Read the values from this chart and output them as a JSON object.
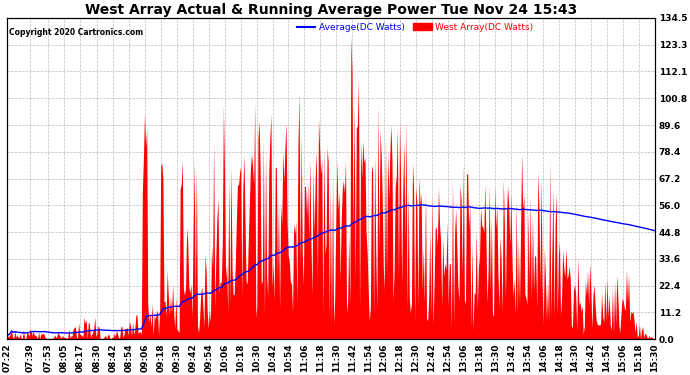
{
  "title": "West Array Actual & Running Average Power Tue Nov 24 15:43",
  "copyright": "Copyright 2020 Cartronics.com",
  "legend_avg": "Average(DC Watts)",
  "legend_west": "West Array(DC Watts)",
  "ylabel_right_ticks": [
    0.0,
    11.2,
    22.4,
    33.6,
    44.8,
    56.0,
    67.2,
    78.4,
    89.6,
    100.8,
    112.1,
    123.3,
    134.5
  ],
  "ymax": 134.5,
  "ymin": 0.0,
  "background_color": "#ffffff",
  "grid_color": "#aaaaaa",
  "bar_color": "#ff0000",
  "avg_line_color": "#0000ff",
  "title_fontsize": 10,
  "tick_fontsize": 6.5,
  "x_tick_labels": [
    "07:22",
    "07:39",
    "07:53",
    "08:05",
    "08:17",
    "08:30",
    "08:42",
    "08:54",
    "09:06",
    "09:18",
    "09:30",
    "09:42",
    "09:54",
    "10:06",
    "10:18",
    "10:30",
    "10:42",
    "10:54",
    "11:06",
    "11:18",
    "11:30",
    "11:42",
    "11:54",
    "12:06",
    "12:18",
    "12:30",
    "12:42",
    "12:54",
    "13:06",
    "13:18",
    "13:30",
    "13:42",
    "13:54",
    "14:06",
    "14:18",
    "14:30",
    "14:42",
    "14:54",
    "15:06",
    "15:18",
    "15:30"
  ]
}
